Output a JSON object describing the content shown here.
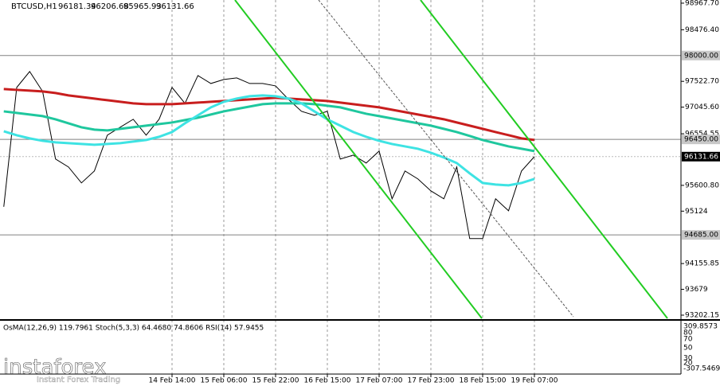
{
  "chart_data": {
    "type": "line",
    "title": "BTCUSD,H1",
    "ohlc": [
      96181.34,
      96206.68,
      95965.93,
      96131.66
    ],
    "categories": [
      null,
      null,
      null,
      null,
      null,
      null,
      null,
      null,
      null,
      null,
      null,
      null,
      null,
      "14 Feb 14:00",
      null,
      null,
      null,
      "15 Feb 06:00",
      null,
      null,
      null,
      "15 Feb 22:00",
      null,
      null,
      null,
      "16 Feb 15:00",
      null,
      null,
      null,
      "17 Feb 07:00",
      null,
      null,
      null,
      "17 Feb 23:00",
      null,
      null,
      null,
      "18 Feb 15:00",
      null,
      null,
      null,
      "19 Feb 07:00"
    ],
    "series": [
      {
        "color": "#000000",
        "values": [
          95205,
          97410,
          97704,
          97336,
          96087,
          95940,
          95646,
          95866,
          96528,
          96675,
          96822,
          96528,
          96822,
          97410,
          97116,
          97630,
          97483,
          97557,
          97586,
          97483,
          97483,
          97439,
          97189,
          96969,
          96895,
          96969,
          96087,
          96160,
          96013,
          96234,
          95352,
          95866,
          95719,
          95499,
          95352,
          95940,
          94617,
          94617,
          95352,
          95131,
          95866,
          96132
        ]
      },
      {
        "color": "#c81e1e",
        "values": [
          97380,
          97365,
          97351,
          97336,
          97307,
          97263,
          97233,
          97204,
          97174,
          97145,
          97116,
          97101,
          97101,
          97101,
          97116,
          97130,
          97145,
          97160,
          97174,
          97189,
          97204,
          97219,
          97204,
          97189,
          97174,
          97160,
          97130,
          97101,
          97072,
          97042,
          96998,
          96954,
          96910,
          96866,
          96822,
          96763,
          96704,
          96645,
          96586,
          96528,
          96469,
          96439
        ]
      },
      {
        "color": "#1fc79e",
        "values": [
          96968,
          96939,
          96910,
          96880,
          96821,
          96748,
          96674,
          96630,
          96616,
          96645,
          96674,
          96704,
          96733,
          96762,
          96807,
          96851,
          96910,
          96968,
          97013,
          97057,
          97101,
          97116,
          97116,
          97116,
          97101,
          97072,
          97042,
          96983,
          96924,
          96880,
          96836,
          96792,
          96748,
          96704,
          96645,
          96586,
          96513,
          96439,
          96380,
          96321,
          96277,
          96233
        ]
      },
      {
        "color": "#3ee3e3",
        "values": [
          96601,
          96527,
          96469,
          96424,
          96395,
          96380,
          96365,
          96351,
          96365,
          96380,
          96410,
          96439,
          96498,
          96586,
          96748,
          96895,
          97042,
          97145,
          97204,
          97248,
          97263,
          97248,
          97204,
          97116,
          96968,
          96821,
          96704,
          96586,
          96498,
          96424,
          96365,
          96321,
          96277,
          96204,
          96116,
          96013,
          95822,
          95645,
          95616,
          95601,
          95645,
          95719
        ]
      }
    ],
    "ylim": [
      93143,
      99026
    ],
    "yticks": [
      {
        "value": 98967.7,
        "label": "98967.70"
      },
      {
        "value": 98476.4,
        "label": "98476.40"
      },
      {
        "value": 97522.7,
        "label": "97522.70"
      },
      {
        "value": 97045.6,
        "label": "97045.60"
      },
      {
        "value": 96554.55,
        "label": "96554.55"
      },
      {
        "value": 95600.8,
        "label": "95600.80"
      },
      95124,
      {
        "value": 94155.85,
        "label": "94155.85"
      },
      93679,
      {
        "value": 93202.15,
        "label": "93202.15"
      }
    ],
    "levels": [
      {
        "value": 98000,
        "label": "98000.00"
      },
      {
        "value": 96450,
        "label": "96450.00"
      },
      {
        "value": 94685,
        "label": "94685.00"
      }
    ],
    "last_price": 96131.66,
    "indicator_title": "OsMA(12,26,9) 119.7961  Stoch(5,3,3) 64.4680 74.8606  RSI(14) 57.9455",
    "indicator_scale": [
      309.8573,
      80,
      70,
      50,
      30,
      20,
      -307.5469
    ]
  },
  "watermark": {
    "brand": "instaforex",
    "tagline": "Instant Forex Trading"
  }
}
